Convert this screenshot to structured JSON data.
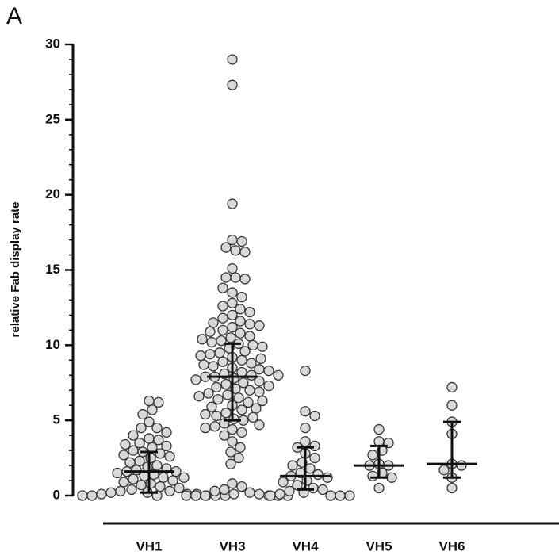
{
  "panel_label": "A",
  "chart_data": {
    "type": "dotplot",
    "ylabel": "relative Fab display rate",
    "ylim": [
      0,
      30
    ],
    "yticks": [
      0,
      5,
      10,
      15,
      20,
      25,
      30
    ],
    "minor_tick_step": 1,
    "series": [
      {
        "name": "VH1",
        "color": "#d9d9d9",
        "median": 1.6,
        "q1": 0.2,
        "q3": 2.9,
        "values": [
          6.3,
          6.2,
          5.7,
          5.4,
          4.9,
          4.5,
          4.5,
          4.2,
          3.8,
          3.7,
          3.5,
          3.3,
          3.2,
          3.0,
          2.9,
          2.8,
          2.6,
          2.5,
          2.3,
          2.2,
          2.0,
          1.9,
          1.8,
          1.7,
          1.6,
          1.6,
          1.5,
          1.4,
          1.3,
          1.2,
          1.1,
          1.0,
          0.9,
          0.8,
          0.7,
          0.6,
          0.5,
          0.4,
          0.3,
          0.3,
          0.2,
          0.2,
          0.1,
          0.1,
          0.1,
          0.0,
          0.0,
          0.0,
          0.0,
          0.0,
          0.0,
          2.7,
          3.4,
          4.0,
          1.2
        ]
      },
      {
        "name": "VH3",
        "color": "#d9d9d9",
        "median": 7.9,
        "q1": 5.0,
        "q3": 10.1,
        "values": [
          29.0,
          27.3,
          19.4,
          17.0,
          16.9,
          16.5,
          16.3,
          16.2,
          15.1,
          14.5,
          14.5,
          14.4,
          13.5,
          13.2,
          12.8,
          12.6,
          12.4,
          12.0,
          11.8,
          11.6,
          11.4,
          11.2,
          11.0,
          10.8,
          10.6,
          10.5,
          10.3,
          10.2,
          10.1,
          10.0,
          9.8,
          9.6,
          9.5,
          9.4,
          9.2,
          9.0,
          8.9,
          8.8,
          8.6,
          8.5,
          8.4,
          8.2,
          8.1,
          8.0,
          7.9,
          7.9,
          7.8,
          7.6,
          7.5,
          7.4,
          7.2,
          7.1,
          7.0,
          6.8,
          6.7,
          6.5,
          6.4,
          6.2,
          6.0,
          5.9,
          5.7,
          5.5,
          5.3,
          5.1,
          5.0,
          4.8,
          4.6,
          4.4,
          4.2,
          4.0,
          3.6,
          3.2,
          2.9,
          2.5,
          2.1,
          0.8,
          0.6,
          0.4,
          0.3,
          0.2,
          0.1,
          0.1,
          0.0,
          0.0,
          0.0,
          0.0,
          0.0,
          0.0,
          11.5,
          10.9,
          9.9,
          9.1,
          8.7,
          8.3,
          7.7,
          7.3,
          6.9,
          6.3,
          5.8,
          5.2,
          4.7,
          12.2,
          11.3,
          10.4,
          9.3,
          8.0,
          6.6,
          5.4,
          4.5,
          13.8
        ]
      },
      {
        "name": "VH4",
        "color": "#d9d9d9",
        "median": 1.3,
        "q1": 0.4,
        "q3": 3.2,
        "values": [
          8.3,
          5.6,
          5.3,
          4.5,
          3.6,
          3.3,
          3.2,
          2.8,
          2.5,
          2.2,
          2.0,
          1.8,
          1.5,
          1.4,
          1.3,
          1.2,
          1.0,
          0.9,
          0.7,
          0.5,
          0.4,
          0.3,
          0.2,
          0.1,
          0.0,
          0.0,
          0.0,
          0.0
        ]
      },
      {
        "name": "VH5",
        "color": "#d9d9d9",
        "median": 2.0,
        "q1": 1.2,
        "q3": 3.3,
        "values": [
          4.4,
          3.6,
          3.5,
          3.0,
          2.7,
          2.1,
          2.0,
          2.0,
          1.5,
          1.3,
          1.2,
          0.5
        ]
      },
      {
        "name": "VH6",
        "color": "#d9d9d9",
        "median": 2.1,
        "q1": 1.2,
        "q3": 4.9,
        "values": [
          7.2,
          6.0,
          4.9,
          4.1,
          2.1,
          2.0,
          1.7,
          1.2,
          0.5
        ]
      }
    ]
  }
}
